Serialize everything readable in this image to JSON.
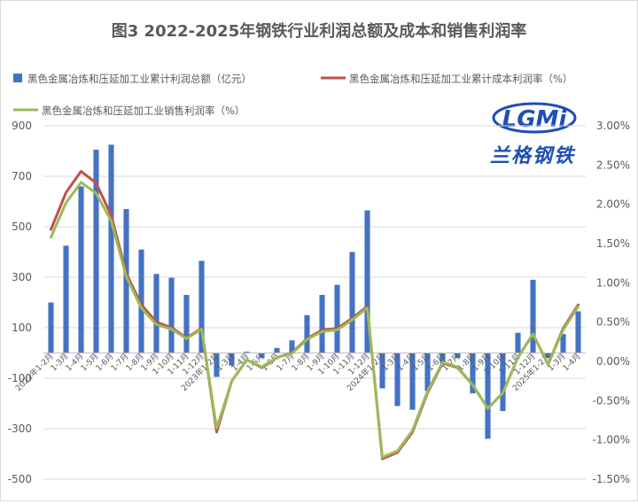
{
  "chart_data": {
    "type": "bar+line",
    "title": "图3 2022-2025年钢铁行业利润总额及成本和销售利润率",
    "legend": {
      "placement": "top",
      "bar": "黑色金属冶炼和压延加工业累计利润总额（亿元）",
      "line_cost": "黑色金属冶炼和压延加工业累计成本利润率（%）",
      "line_sales": "黑色金属冶炼和压延加工业销售利润率（%）"
    },
    "logo": {
      "text": "LGMi",
      "caption": "兰格钢铁"
    },
    "colors": {
      "bar": "#4472c4",
      "line_cost": "#c0504d",
      "line_sales": "#9bbb59",
      "grid": "#d9d9d9",
      "text": "#595959",
      "logo_blue": "#1f4fb5"
    },
    "left_axis": {
      "ylim": [
        -500,
        900
      ],
      "ticks": [
        "900",
        "700",
        "500",
        "300",
        "100",
        "-100",
        "-300",
        "-500"
      ],
      "tick_values": [
        900,
        700,
        500,
        300,
        100,
        -100,
        -300,
        -500
      ]
    },
    "right_axis": {
      "ylim": [
        -1.5,
        3.0
      ],
      "ticks": [
        "3.00%",
        "2.50%",
        "2.00%",
        "1.50%",
        "1.00%",
        "0.50%",
        "0.00%",
        "-0.50%",
        "-1.00%",
        "-1.50%"
      ],
      "tick_values": [
        3.0,
        2.5,
        2.0,
        1.5,
        1.0,
        0.5,
        0.0,
        -0.5,
        -1.0,
        -1.5
      ]
    },
    "grid": true,
    "categories": [
      "2022年1-2月",
      "1-3月",
      "1-4月",
      "1-5月",
      "1-6月",
      "1-7月",
      "1-8月",
      "1-9月",
      "1-10月",
      "1-11月",
      "1-12月",
      "2023年1-2月",
      "1-3月",
      "1-4月",
      "1-5月",
      "1-6月",
      "1-7月",
      "1-8月",
      "1-9月",
      "1-10月",
      "1-11月",
      "1-12月",
      "2024年1-2月",
      "1-3月",
      "1-4月",
      "1-5月",
      "1-6月",
      "1-7月",
      "1-8月",
      "1-9月",
      "1-10月",
      "1-11月",
      "1-12月",
      "2025年1-2月",
      "1-3月",
      "1-4月"
    ],
    "series": [
      {
        "name": "黑色金属冶炼和压延加工业累计利润总额（亿元）",
        "axis": "left",
        "kind": "bar",
        "values": [
          200,
          425,
          660,
          805,
          825,
          570,
          410,
          313,
          298,
          230,
          365,
          -95,
          -50,
          5,
          -20,
          20,
          50,
          150,
          230,
          270,
          400,
          565,
          -140,
          -210,
          -225,
          -150,
          -40,
          -20,
          -160,
          -340,
          -230,
          80,
          290,
          -20,
          75,
          165
        ]
      },
      {
        "name": "黑色金属冶炼和压延加工业累计成本利润率（%）",
        "axis": "right",
        "kind": "line",
        "values": [
          1.68,
          2.15,
          2.42,
          2.27,
          1.86,
          1.12,
          0.72,
          0.5,
          0.43,
          0.3,
          0.42,
          -0.9,
          -0.25,
          0.02,
          -0.08,
          0.05,
          0.11,
          0.29,
          0.4,
          0.42,
          0.55,
          0.7,
          -1.24,
          -1.16,
          -0.9,
          -0.4,
          -0.02,
          -0.08,
          -0.3,
          -0.6,
          -0.4,
          0.05,
          0.35,
          -0.04,
          0.42,
          0.72
        ]
      },
      {
        "name": "黑色金属冶炼和压延加工业销售利润率（%）",
        "axis": "right",
        "kind": "line",
        "values": [
          1.58,
          2.02,
          2.28,
          2.14,
          1.79,
          1.08,
          0.68,
          0.47,
          0.41,
          0.29,
          0.41,
          -0.85,
          -0.25,
          0.02,
          -0.07,
          0.05,
          0.1,
          0.28,
          0.38,
          0.4,
          0.53,
          0.68,
          -1.22,
          -1.14,
          -0.88,
          -0.38,
          -0.01,
          -0.07,
          -0.3,
          -0.6,
          -0.4,
          0.05,
          0.35,
          -0.04,
          0.4,
          0.7
        ]
      }
    ]
  }
}
